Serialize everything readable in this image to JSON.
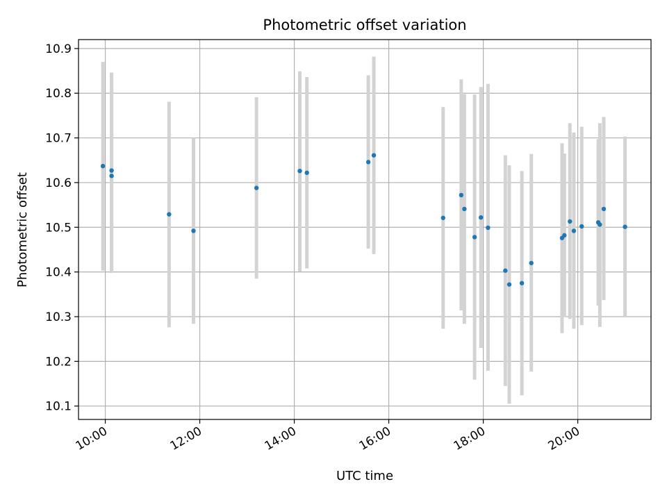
{
  "chart_data": {
    "type": "scatter",
    "title": "Photometric offset variation",
    "xlabel": "UTC time",
    "ylabel": "Photometric offset",
    "x_ticks": [
      "10:00",
      "12:00",
      "14:00",
      "16:00",
      "18:00",
      "20:00"
    ],
    "y_ticks": [
      "10.1",
      "10.2",
      "10.3",
      "10.4",
      "10.5",
      "10.6",
      "10.7",
      "10.8",
      "10.9"
    ],
    "xlim": [
      "09:26",
      "21:33"
    ],
    "ylim": [
      10.07,
      10.92
    ],
    "grid": true,
    "marker_color": "#1f77b4",
    "errorbar_color": "#d3d3d3",
    "points": [
      {
        "t": "09:57",
        "y": 10.637,
        "lo": 10.403,
        "hi": 10.87
      },
      {
        "t": "10:08",
        "y": 10.627,
        "lo": 10.398,
        "hi": 10.846
      },
      {
        "t": "10:08",
        "y": 10.615,
        "lo": 10.398,
        "hi": 10.846
      },
      {
        "t": "11:21",
        "y": 10.529,
        "lo": 10.276,
        "hi": 10.781
      },
      {
        "t": "11:52",
        "y": 10.492,
        "lo": 10.284,
        "hi": 10.7
      },
      {
        "t": "13:12",
        "y": 10.588,
        "lo": 10.385,
        "hi": 10.791
      },
      {
        "t": "14:07",
        "y": 10.626,
        "lo": 10.401,
        "hi": 10.849
      },
      {
        "t": "14:16",
        "y": 10.622,
        "lo": 10.408,
        "hi": 10.836
      },
      {
        "t": "15:34",
        "y": 10.646,
        "lo": 10.452,
        "hi": 10.84
      },
      {
        "t": "15:41",
        "y": 10.661,
        "lo": 10.44,
        "hi": 10.882
      },
      {
        "t": "17:09",
        "y": 10.521,
        "lo": 10.273,
        "hi": 10.769
      },
      {
        "t": "17:32",
        "y": 10.572,
        "lo": 10.314,
        "hi": 10.831
      },
      {
        "t": "17:36",
        "y": 10.541,
        "lo": 10.284,
        "hi": 10.798
      },
      {
        "t": "17:49",
        "y": 10.478,
        "lo": 10.159,
        "hi": 10.797
      },
      {
        "t": "17:57",
        "y": 10.522,
        "lo": 10.23,
        "hi": 10.814
      },
      {
        "t": "18:06",
        "y": 10.499,
        "lo": 10.179,
        "hi": 10.821
      },
      {
        "t": "18:28",
        "y": 10.403,
        "lo": 10.145,
        "hi": 10.661
      },
      {
        "t": "18:33",
        "y": 10.372,
        "lo": 10.105,
        "hi": 10.639
      },
      {
        "t": "18:49",
        "y": 10.375,
        "lo": 10.124,
        "hi": 10.626
      },
      {
        "t": "19:01",
        "y": 10.42,
        "lo": 10.177,
        "hi": 10.664
      },
      {
        "t": "19:40",
        "y": 10.476,
        "lo": 10.263,
        "hi": 10.688
      },
      {
        "t": "19:43",
        "y": 10.482,
        "lo": 10.299,
        "hi": 10.665
      },
      {
        "t": "19:50",
        "y": 10.513,
        "lo": 10.295,
        "hi": 10.733
      },
      {
        "t": "19:55",
        "y": 10.492,
        "lo": 10.273,
        "hi": 10.712
      },
      {
        "t": "20:05",
        "y": 10.502,
        "lo": 10.281,
        "hi": 10.725
      },
      {
        "t": "20:26",
        "y": 10.511,
        "lo": 10.325,
        "hi": 10.697
      },
      {
        "t": "20:28",
        "y": 10.506,
        "lo": 10.277,
        "hi": 10.733
      },
      {
        "t": "20:33",
        "y": 10.541,
        "lo": 10.337,
        "hi": 10.747
      },
      {
        "t": "21:00",
        "y": 10.501,
        "lo": 10.3,
        "hi": 10.703
      }
    ]
  }
}
